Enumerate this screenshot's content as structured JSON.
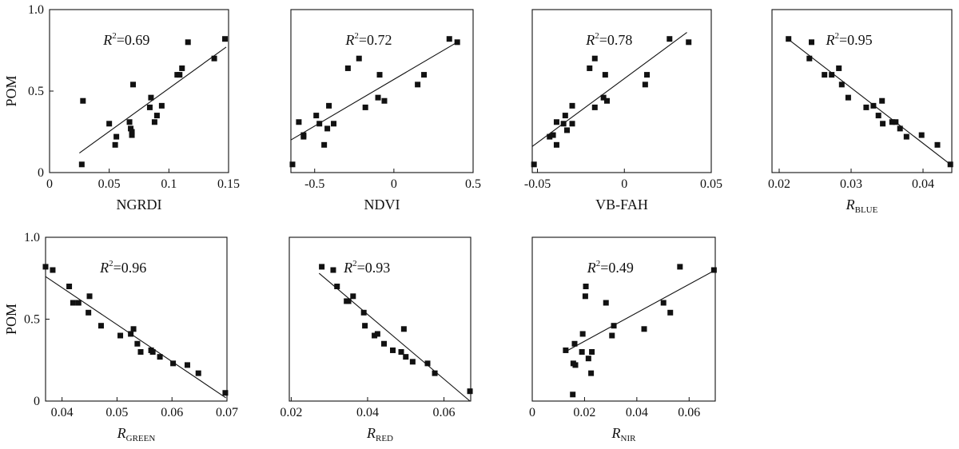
{
  "chart_data": [
    {
      "type": "scatter",
      "xlabel": "NGRDI",
      "xlabel_sub": "",
      "ylabel": "POM",
      "r2_text": "=0.69",
      "xlim": [
        0,
        0.15
      ],
      "ylim": [
        0,
        1.0
      ],
      "xticks": [
        "0",
        "0.05",
        "0.1",
        "0.15"
      ],
      "xtick_values": [
        0,
        0.05,
        0.1,
        0.15
      ],
      "yticks": [
        "0",
        "0.5",
        "1.0"
      ],
      "ytick_values": [
        0,
        0.5,
        1.0
      ],
      "x": [
        0.027,
        0.028,
        0.05,
        0.055,
        0.056,
        0.067,
        0.068,
        0.069,
        0.069,
        0.07,
        0.084,
        0.085,
        0.088,
        0.09,
        0.094,
        0.107,
        0.109,
        0.111,
        0.116,
        0.138,
        0.147
      ],
      "y": [
        0.05,
        0.44,
        0.3,
        0.17,
        0.22,
        0.31,
        0.27,
        0.23,
        0.25,
        0.54,
        0.4,
        0.46,
        0.31,
        0.35,
        0.41,
        0.6,
        0.6,
        0.64,
        0.8,
        0.7,
        0.82
      ],
      "fit": [
        [
          0.025,
          0.12
        ],
        [
          0.148,
          0.77
        ]
      ]
    },
    {
      "type": "scatter",
      "xlabel": "NDVI",
      "xlabel_sub": "",
      "ylabel": "",
      "r2_text": "=0.72",
      "xlim": [
        -0.65,
        0.5
      ],
      "ylim": [
        0,
        1.0
      ],
      "xticks": [
        "-0.5",
        "0",
        "0.5"
      ],
      "xtick_values": [
        -0.5,
        0,
        0.5
      ],
      "yticks": [],
      "ytick_values": [],
      "x": [
        -0.64,
        -0.6,
        -0.57,
        -0.57,
        -0.49,
        -0.47,
        -0.44,
        -0.42,
        -0.41,
        -0.38,
        -0.29,
        -0.22,
        -0.18,
        -0.1,
        -0.09,
        -0.06,
        0.15,
        0.19,
        0.35,
        0.4
      ],
      "y": [
        0.05,
        0.31,
        0.22,
        0.23,
        0.35,
        0.3,
        0.17,
        0.27,
        0.41,
        0.3,
        0.64,
        0.7,
        0.4,
        0.46,
        0.6,
        0.44,
        0.54,
        0.6,
        0.82,
        0.8
      ],
      "fit": [
        [
          -0.65,
          0.2
        ],
        [
          0.4,
          0.8
        ]
      ]
    },
    {
      "type": "scatter",
      "xlabel": "VB-FAH",
      "xlabel_sub": "",
      "ylabel": "",
      "r2_text": "=0.78",
      "xlim": [
        -0.053,
        0.05
      ],
      "ylim": [
        0,
        1.0
      ],
      "xticks": [
        "-0.05",
        "0",
        "0.05"
      ],
      "xtick_values": [
        -0.05,
        0,
        0.05
      ],
      "yticks": [],
      "ytick_values": [],
      "x": [
        -0.052,
        -0.043,
        -0.041,
        -0.039,
        -0.039,
        -0.035,
        -0.034,
        -0.033,
        -0.03,
        -0.03,
        -0.02,
        -0.017,
        -0.017,
        -0.012,
        -0.011,
        -0.01,
        0.012,
        0.013,
        0.026,
        0.037
      ],
      "y": [
        0.05,
        0.22,
        0.23,
        0.31,
        0.17,
        0.3,
        0.35,
        0.26,
        0.3,
        0.41,
        0.64,
        0.7,
        0.4,
        0.46,
        0.6,
        0.44,
        0.54,
        0.6,
        0.82,
        0.8
      ],
      "fit": [
        [
          -0.053,
          0.16
        ],
        [
          0.036,
          0.86
        ]
      ]
    },
    {
      "type": "scatter",
      "xlabel": "R",
      "xlabel_sub": "BLUE",
      "ylabel": "",
      "r2_text": "=0.95",
      "xlim": [
        0.019,
        0.044
      ],
      "ylim": [
        0,
        1.0
      ],
      "xticks": [
        "0.02",
        "0.03",
        "0.04"
      ],
      "xtick_values": [
        0.02,
        0.03,
        0.04
      ],
      "yticks": [],
      "ytick_values": [],
      "x": [
        0.0213,
        0.0242,
        0.0245,
        0.0263,
        0.0273,
        0.0283,
        0.0287,
        0.0296,
        0.0321,
        0.0331,
        0.0338,
        0.0343,
        0.0344,
        0.0357,
        0.0362,
        0.0368,
        0.0377,
        0.0398,
        0.042,
        0.0438
      ],
      "y": [
        0.82,
        0.7,
        0.8,
        0.6,
        0.6,
        0.64,
        0.54,
        0.46,
        0.4,
        0.41,
        0.35,
        0.44,
        0.3,
        0.31,
        0.31,
        0.27,
        0.22,
        0.23,
        0.17,
        0.05
      ],
      "fit": [
        [
          0.0212,
          0.82
        ],
        [
          0.0438,
          0.05
        ]
      ]
    },
    {
      "type": "scatter",
      "xlabel": "R",
      "xlabel_sub": "GREEN",
      "ylabel": "POM",
      "r2_text": "=0.96",
      "xlim": [
        0.037,
        0.07
      ],
      "ylim": [
        0,
        1.0
      ],
      "xticks": [
        "0.04",
        "0.05",
        "0.06",
        "0.07"
      ],
      "xtick_values": [
        0.04,
        0.05,
        0.06,
        0.07
      ],
      "yticks": [
        "0",
        "0.5",
        "1.0"
      ],
      "ytick_values": [
        0,
        0.5,
        1.0
      ],
      "x": [
        0.037,
        0.0383,
        0.0413,
        0.042,
        0.043,
        0.0448,
        0.045,
        0.0471,
        0.0506,
        0.0525,
        0.053,
        0.0537,
        0.0543,
        0.0562,
        0.0565,
        0.0578,
        0.0602,
        0.0628,
        0.0648,
        0.0697
      ],
      "y": [
        0.82,
        0.8,
        0.7,
        0.6,
        0.6,
        0.54,
        0.64,
        0.46,
        0.4,
        0.41,
        0.44,
        0.35,
        0.3,
        0.31,
        0.3,
        0.27,
        0.23,
        0.22,
        0.17,
        0.05
      ],
      "fit": [
        [
          0.037,
          0.76
        ],
        [
          0.0698,
          0.02
        ]
      ]
    },
    {
      "type": "scatter",
      "xlabel": "R",
      "xlabel_sub": "RED",
      "ylabel": "",
      "r2_text": "=0.93",
      "xlim": [
        0.0195,
        0.067
      ],
      "ylim": [
        0,
        1.0
      ],
      "xticks": [
        "0.02",
        "0.04",
        "0.06"
      ],
      "xtick_values": [
        0.02,
        0.04,
        0.06
      ],
      "yticks": [],
      "ytick_values": [],
      "x": [
        0.028,
        0.031,
        0.032,
        0.0345,
        0.035,
        0.0362,
        0.039,
        0.0393,
        0.0418,
        0.0426,
        0.0443,
        0.0466,
        0.0488,
        0.0495,
        0.05,
        0.0518,
        0.0557,
        0.0576,
        0.0668
      ],
      "y": [
        0.82,
        0.8,
        0.7,
        0.61,
        0.61,
        0.64,
        0.54,
        0.46,
        0.4,
        0.41,
        0.35,
        0.31,
        0.3,
        0.44,
        0.27,
        0.24,
        0.23,
        0.17,
        0.06
      ],
      "fit": [
        [
          0.0273,
          0.78
        ],
        [
          0.0668,
          0.0
        ]
      ]
    },
    {
      "type": "scatter",
      "xlabel": "R",
      "xlabel_sub": "NIR",
      "ylabel": "",
      "r2_text": "=0.49",
      "xlim": [
        0,
        0.07
      ],
      "ylim": [
        0,
        1.0
      ],
      "xticks": [
        "0",
        "0.02",
        "0.04",
        "0.06"
      ],
      "xtick_values": [
        0,
        0.02,
        0.04,
        0.06
      ],
      "yticks": [],
      "ytick_values": [],
      "x": [
        0.0128,
        0.0155,
        0.0157,
        0.0162,
        0.0165,
        0.019,
        0.0193,
        0.0203,
        0.0205,
        0.0215,
        0.0225,
        0.0228,
        0.0282,
        0.0305,
        0.0312,
        0.0428,
        0.0502,
        0.0528,
        0.0565,
        0.0695
      ],
      "y": [
        0.31,
        0.04,
        0.23,
        0.35,
        0.22,
        0.3,
        0.41,
        0.64,
        0.7,
        0.26,
        0.17,
        0.3,
        0.6,
        0.4,
        0.46,
        0.44,
        0.6,
        0.54,
        0.82,
        0.8
      ],
      "fit": [
        [
          0.0125,
          0.3
        ],
        [
          0.07,
          0.8
        ]
      ]
    }
  ]
}
